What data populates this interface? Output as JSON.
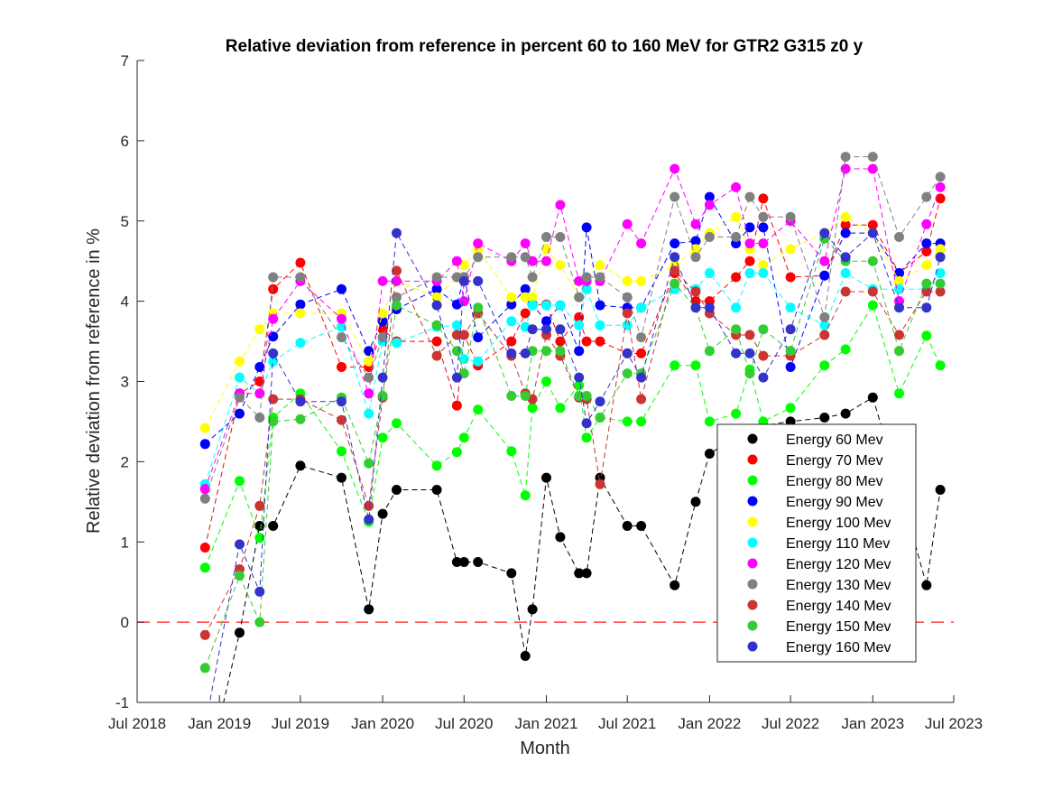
{
  "chart_data": {
    "type": "line",
    "title": "Relative deviation from reference in percent 60 to 160 MeV for GTR2 G315 z0 y",
    "xlabel": "Month",
    "ylabel": "Relative deviation from reference in %",
    "xlim": [
      "2018-07-01",
      "2023-07-01"
    ],
    "ylim": [
      -1,
      7
    ],
    "x_ticks": [
      "Jul 2018",
      "Jan 2019",
      "Jul 2019",
      "Jan 2020",
      "Jul 2020",
      "Jan 2021",
      "Jul 2021",
      "Jan 2022",
      "Jul 2022",
      "Jan 2023",
      "Jul 2023"
    ],
    "y_ticks": [
      "-1",
      "0",
      "1",
      "2",
      "3",
      "4",
      "5",
      "6",
      "7"
    ],
    "reference_line": {
      "y": 0,
      "color": "#ff0000",
      "style": "dashed"
    },
    "legend_position": "lower-right inside",
    "line_style": "dashed with filled circle markers",
    "x": [
      "2018-11-30",
      "2019-02-15",
      "2019-04-01",
      "2019-05-01",
      "2019-07-01",
      "2019-10-01",
      "2019-12-01",
      "2020-01-01",
      "2020-02-01",
      "2020-05-01",
      "2020-06-15",
      "2020-07-01",
      "2020-08-01",
      "2020-10-15",
      "2020-11-15",
      "2020-12-01",
      "2021-01-01",
      "2021-02-01",
      "2021-03-15",
      "2021-04-01",
      "2021-05-01",
      "2021-07-01",
      "2021-08-01",
      "2021-10-15",
      "2021-12-01",
      "2022-01-01",
      "2022-03-01",
      "2022-04-01",
      "2022-05-01",
      "2022-07-01",
      "2022-09-15",
      "2022-11-01",
      "2023-01-01",
      "2023-03-01",
      "2023-05-01",
      "2023-06-01"
    ],
    "series": [
      {
        "name": "Energy 60 Mev",
        "color": "#000000",
        "values": [
          -2.0,
          -0.13,
          1.2,
          1.2,
          1.95,
          1.8,
          0.16,
          1.35,
          1.65,
          1.65,
          0.75,
          0.75,
          0.75,
          0.61,
          -0.42,
          0.16,
          1.8,
          1.06,
          0.61,
          0.61,
          1.8,
          1.2,
          1.2,
          0.46,
          1.5,
          2.1,
          2.3,
          2.4,
          2.45,
          2.5,
          2.55,
          2.6,
          2.8,
          1.7,
          0.46,
          1.65
        ]
      },
      {
        "name": "Energy 70 Mev",
        "color": "#ff0000",
        "values": [
          0.93,
          2.85,
          3.0,
          4.15,
          4.48,
          3.18,
          3.18,
          3.65,
          3.5,
          3.5,
          2.7,
          3.58,
          3.2,
          3.5,
          3.85,
          3.96,
          3.96,
          3.5,
          3.8,
          3.5,
          3.5,
          3.35,
          3.35,
          4.35,
          4.0,
          4.0,
          4.3,
          4.5,
          5.28,
          4.3,
          4.32,
          4.95,
          4.95,
          4.35,
          4.62,
          5.28
        ]
      },
      {
        "name": "Energy 80 Mev",
        "color": "#00ff00",
        "values": [
          0.68,
          1.76,
          1.05,
          2.55,
          2.85,
          2.13,
          1.25,
          2.3,
          2.48,
          1.95,
          2.12,
          2.3,
          2.65,
          2.13,
          1.58,
          2.67,
          3.0,
          2.67,
          2.95,
          2.3,
          2.55,
          2.5,
          2.5,
          3.2,
          3.2,
          2.5,
          2.6,
          3.15,
          2.5,
          2.67,
          3.2,
          3.4,
          3.95,
          2.85,
          3.57,
          3.2
        ]
      },
      {
        "name": "Energy 90 Mev",
        "color": "#0000ff",
        "values": [
          2.22,
          2.6,
          3.18,
          3.56,
          3.96,
          4.15,
          3.38,
          3.75,
          3.9,
          4.15,
          3.96,
          4.3,
          3.55,
          3.96,
          4.15,
          3.96,
          3.75,
          3.95,
          3.38,
          4.92,
          3.95,
          3.92,
          3.92,
          4.72,
          4.75,
          5.3,
          4.72,
          4.92,
          4.92,
          3.18,
          4.32,
          4.85,
          4.85,
          4.35,
          4.72,
          4.72
        ]
      },
      {
        "name": "Energy 100 Mev",
        "color": "#ffff00",
        "values": [
          2.42,
          3.25,
          3.65,
          3.85,
          3.85,
          3.85,
          3.25,
          3.85,
          4.25,
          4.05,
          4.3,
          4.45,
          4.65,
          4.05,
          4.05,
          4.05,
          4.65,
          4.45,
          4.05,
          4.25,
          4.45,
          4.25,
          4.25,
          4.45,
          4.65,
          4.85,
          5.05,
          4.65,
          4.45,
          4.65,
          4.85,
          5.05,
          4.85,
          4.25,
          4.45,
          4.65
        ]
      },
      {
        "name": "Energy 110 Mev",
        "color": "#00ffff",
        "values": [
          1.72,
          3.05,
          2.85,
          3.25,
          3.48,
          3.68,
          2.6,
          3.5,
          3.48,
          3.68,
          3.7,
          3.28,
          3.25,
          3.75,
          3.68,
          3.95,
          3.95,
          3.95,
          3.7,
          4.15,
          3.7,
          3.7,
          3.92,
          4.15,
          4.15,
          4.35,
          3.92,
          4.35,
          4.35,
          3.92,
          3.7,
          4.35,
          4.15,
          4.15,
          4.15,
          4.35
        ]
      },
      {
        "name": "Energy 120 Mev",
        "color": "#ff00ff",
        "values": [
          1.66,
          2.85,
          2.85,
          3.78,
          4.25,
          3.78,
          2.85,
          4.25,
          4.25,
          4.25,
          4.5,
          4.0,
          4.72,
          4.5,
          4.72,
          4.5,
          4.5,
          5.2,
          4.25,
          4.25,
          4.25,
          4.96,
          4.72,
          5.65,
          4.96,
          5.2,
          5.42,
          4.72,
          4.72,
          5.0,
          4.5,
          5.65,
          5.65,
          4.0,
          4.96,
          5.42
        ]
      },
      {
        "name": "Energy 130 Mev",
        "color": "#808080",
        "values": [
          1.54,
          2.8,
          2.55,
          4.3,
          4.3,
          3.55,
          3.05,
          3.55,
          4.05,
          4.3,
          4.3,
          4.3,
          4.55,
          4.55,
          4.55,
          4.3,
          4.8,
          4.8,
          4.05,
          4.3,
          4.3,
          4.05,
          3.55,
          5.3,
          4.55,
          4.8,
          4.8,
          5.3,
          5.05,
          5.05,
          3.8,
          5.8,
          5.8,
          4.8,
          5.3,
          5.55
        ]
      },
      {
        "name": "Energy 140 Mev",
        "color": "#cc3333",
        "values": [
          -0.16,
          0.66,
          1.45,
          2.78,
          2.78,
          2.52,
          1.45,
          2.8,
          4.38,
          3.32,
          3.58,
          3.58,
          3.85,
          3.32,
          2.85,
          2.78,
          3.58,
          3.32,
          2.8,
          2.78,
          1.72,
          3.85,
          2.78,
          4.38,
          4.12,
          3.85,
          3.58,
          3.58,
          3.32,
          3.32,
          3.58,
          4.12,
          4.12,
          3.58,
          4.12,
          4.12
        ]
      },
      {
        "name": "Energy 150 Mev",
        "color": "#33cc33",
        "values": [
          -0.57,
          0.58,
          0.0,
          2.5,
          2.53,
          2.8,
          1.98,
          2.82,
          3.95,
          3.7,
          3.38,
          3.1,
          3.92,
          2.82,
          2.82,
          3.38,
          3.38,
          3.38,
          2.82,
          2.82,
          2.55,
          3.1,
          3.1,
          4.22,
          3.92,
          3.38,
          3.65,
          3.1,
          3.65,
          3.38,
          4.78,
          4.5,
          4.5,
          3.38,
          4.22,
          4.22
        ]
      },
      {
        "name": "Energy 160 Mev",
        "color": "#3333cc",
        "values": [
          -1.3,
          0.97,
          0.38,
          3.35,
          2.75,
          2.75,
          1.28,
          3.05,
          4.85,
          3.95,
          3.05,
          4.25,
          4.25,
          3.35,
          3.35,
          3.65,
          3.65,
          3.65,
          3.05,
          2.48,
          2.75,
          3.35,
          3.05,
          4.55,
          3.92,
          3.92,
          3.35,
          3.35,
          3.05,
          3.65,
          4.85,
          4.55,
          4.85,
          3.92,
          3.92,
          4.55
        ]
      }
    ]
  }
}
